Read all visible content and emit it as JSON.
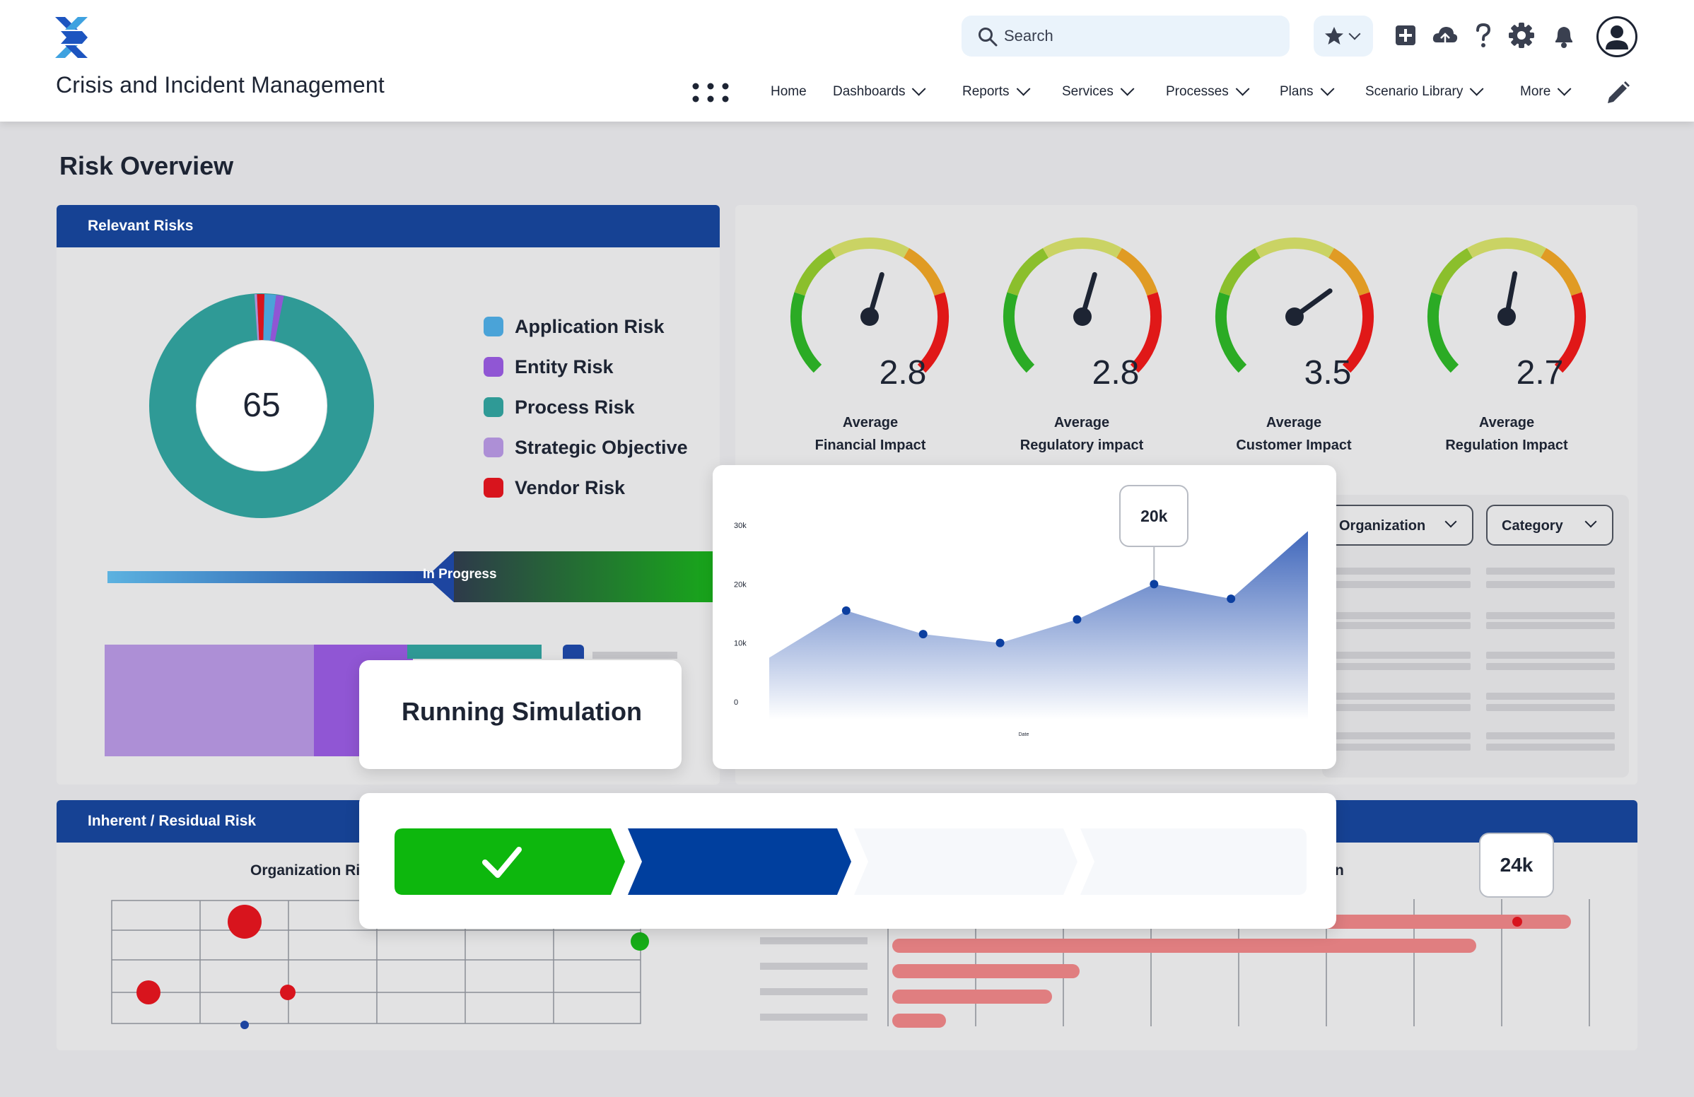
{
  "header": {
    "app_title": "Crisis and Incident Management",
    "search_placeholder": "Search",
    "nav": [
      {
        "label": "Home",
        "dropdown": false
      },
      {
        "label": "Dashboards",
        "dropdown": true
      },
      {
        "label": "Reports",
        "dropdown": true
      },
      {
        "label": "Services",
        "dropdown": true
      },
      {
        "label": "Processes",
        "dropdown": true
      },
      {
        "label": "Plans",
        "dropdown": true
      },
      {
        "label": "Scenario Library",
        "dropdown": true
      },
      {
        "label": "More",
        "dropdown": true
      }
    ],
    "icons": [
      "favorites-star-icon",
      "add-icon",
      "cloud-icon",
      "help-icon",
      "settings-gear-icon",
      "notifications-bell-icon",
      "user-avatar-icon",
      "edit-pencil-icon"
    ]
  },
  "page_title": "Risk Overview",
  "relevant_risks": {
    "title": "Relevant Risks",
    "total": "65",
    "legend": [
      {
        "label": "Application Risk",
        "color": "#4aa3d8"
      },
      {
        "label": "Entity Risk",
        "color": "#9056d4"
      },
      {
        "label": "Process Risk",
        "color": "#2f9a96"
      },
      {
        "label": "Strategic Objective",
        "color": "#ad8fd6"
      },
      {
        "label": "Vendor Risk",
        "color": "#d8141d"
      }
    ],
    "status_label": "In Progress"
  },
  "gauges": [
    {
      "value": "2.8",
      "line1": "Average",
      "line2": "Financial Impact",
      "level": 2.8
    },
    {
      "value": "2.8",
      "line1": "Average",
      "line2": "Regulatory impact",
      "level": 2.8
    },
    {
      "value": "3.5",
      "line1": "Average",
      "line2": "Customer Impact",
      "level": 3.5
    },
    {
      "value": "2.7",
      "line1": "Average",
      "line2": "Regulation Impact",
      "level": 2.7
    }
  ],
  "filters": {
    "organization": "Organization",
    "category": "Category"
  },
  "simulation": {
    "title": "Running Simulation",
    "steps_complete": 1,
    "steps_active": 2,
    "steps_total": 4
  },
  "chart_data": {
    "type": "area",
    "x": [
      1,
      2,
      3,
      4,
      5,
      6,
      7,
      8
    ],
    "values": [
      7500,
      15500,
      11500,
      10000,
      14000,
      20000,
      17500,
      29000
    ],
    "ytick_labels": [
      "30k",
      "20k",
      "10k",
      "0"
    ],
    "ylim": [
      -3000,
      33000
    ],
    "xlabel": "Date",
    "tooltip": "20k",
    "color": "#1f4db0"
  },
  "inherent_residual": {
    "title": "Inherent / Residual Risk",
    "org_label": "Organization Ri",
    "right_label": "n",
    "tooltip": "24k"
  }
}
